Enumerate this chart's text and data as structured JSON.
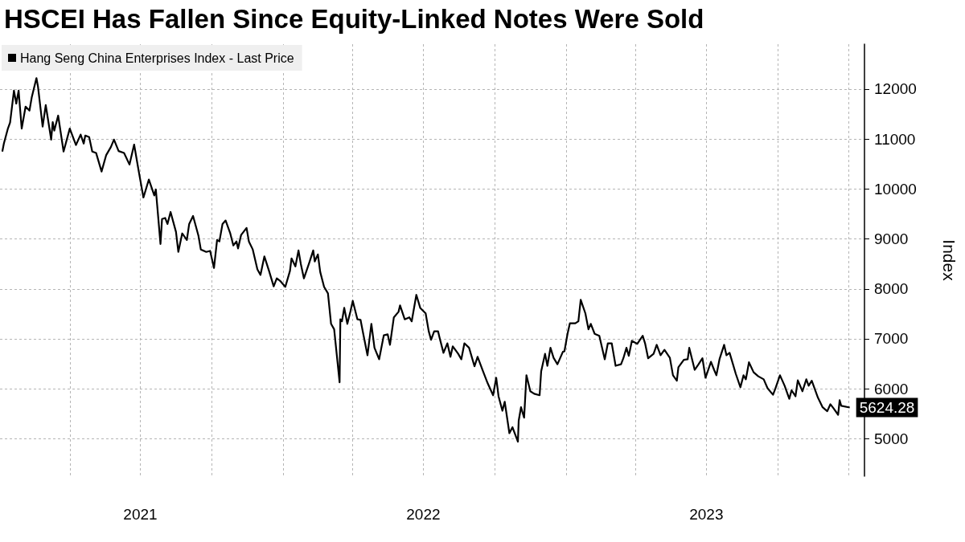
{
  "chart_data": {
    "type": "line",
    "title": "HSCEI Has Fallen Since Equity-Linked Notes Were Sold",
    "ylabel": "Index",
    "x": [
      "2021-01-04",
      "2021-01-06",
      "2021-01-11",
      "2021-01-14",
      "2021-01-19",
      "2021-01-22",
      "2021-01-25",
      "2021-01-29",
      "2021-02-03",
      "2021-02-08",
      "2021-02-11",
      "2021-02-17",
      "2021-02-19",
      "2021-02-23",
      "2021-02-25",
      "2021-03-01",
      "2021-03-08",
      "2021-03-10",
      "2021-03-12",
      "2021-03-17",
      "2021-03-24",
      "2021-04-01",
      "2021-04-09",
      "2021-04-15",
      "2021-04-19",
      "2021-04-21",
      "2021-04-26",
      "2021-04-30",
      "2021-05-05",
      "2021-05-12",
      "2021-05-18",
      "2021-05-24",
      "2021-05-28",
      "2021-06-03",
      "2021-06-10",
      "2021-06-17",
      "2021-06-23",
      "2021-06-29",
      "2021-07-05",
      "2021-07-12",
      "2021-07-19",
      "2021-07-21",
      "2021-07-27",
      "2021-07-29",
      "2021-08-02",
      "2021-08-05",
      "2021-08-09",
      "2021-08-16",
      "2021-08-19",
      "2021-08-24",
      "2021-08-30",
      "2021-09-02",
      "2021-09-07",
      "2021-09-14",
      "2021-09-17",
      "2021-09-24",
      "2021-09-29",
      "2021-10-04",
      "2021-10-08",
      "2021-10-11",
      "2021-10-15",
      "2021-10-19",
      "2021-10-25",
      "2021-10-29",
      "2021-11-02",
      "2021-11-04",
      "2021-11-08",
      "2021-11-15",
      "2021-11-18",
      "2021-11-23",
      "2021-11-29",
      "2021-12-03",
      "2021-12-08",
      "2021-12-14",
      "2021-12-20",
      "2021-12-24",
      "2021-12-29",
      "2022-01-04",
      "2022-01-10",
      "2022-01-12",
      "2022-01-17",
      "2022-01-21",
      "2022-01-24",
      "2022-01-28",
      "2022-02-04",
      "2022-02-09",
      "2022-02-11",
      "2022-02-15",
      "2022-02-18",
      "2022-02-23",
      "2022-02-28",
      "2022-03-04",
      "2022-03-08",
      "2022-03-15",
      "2022-03-16",
      "2022-03-18",
      "2022-03-21",
      "2022-03-25",
      "2022-03-29",
      "2022-04-01",
      "2022-04-07",
      "2022-04-11",
      "2022-04-14",
      "2022-04-20",
      "2022-04-25",
      "2022-04-29",
      "2022-05-05",
      "2022-05-11",
      "2022-05-16",
      "2022-05-19",
      "2022-05-24",
      "2022-05-30",
      "2022-06-01",
      "2022-06-07",
      "2022-06-13",
      "2022-06-16",
      "2022-06-22",
      "2022-06-27",
      "2022-07-04",
      "2022-07-08",
      "2022-07-11",
      "2022-07-15",
      "2022-07-20",
      "2022-07-22",
      "2022-07-27",
      "2022-08-01",
      "2022-08-05",
      "2022-08-08",
      "2022-08-15",
      "2022-08-19",
      "2022-08-23",
      "2022-08-29",
      "2022-09-05",
      "2022-09-09",
      "2022-09-16",
      "2022-09-22",
      "2022-09-29",
      "2022-10-03",
      "2022-10-06",
      "2022-10-11",
      "2022-10-14",
      "2022-10-20",
      "2022-10-24",
      "2022-10-31",
      "2022-11-01",
      "2022-11-04",
      "2022-11-08",
      "2022-11-11",
      "2022-11-16",
      "2022-11-21",
      "2022-11-28",
      "2022-11-30",
      "2022-12-05",
      "2022-12-08",
      "2022-12-12",
      "2022-12-16",
      "2022-12-21",
      "2022-12-28",
      "2022-12-30",
      "2023-01-03",
      "2023-01-06",
      "2023-01-13",
      "2023-01-17",
      "2023-01-20",
      "2023-01-26",
      "2023-01-30",
      "2023-02-02",
      "2023-02-07",
      "2023-02-13",
      "2023-02-20",
      "2023-02-24",
      "2023-03-01",
      "2023-03-06",
      "2023-03-13",
      "2023-03-16",
      "2023-03-20",
      "2023-03-23",
      "2023-03-27",
      "2023-04-03",
      "2023-04-10",
      "2023-04-13",
      "2023-04-17",
      "2023-04-24",
      "2023-04-28",
      "2023-05-03",
      "2023-05-08",
      "2023-05-15",
      "2023-05-19",
      "2023-05-24",
      "2023-05-26",
      "2023-06-02",
      "2023-06-07",
      "2023-06-09",
      "2023-06-16",
      "2023-06-21",
      "2023-06-26",
      "2023-06-30",
      "2023-07-07",
      "2023-07-11",
      "2023-07-14",
      "2023-07-18",
      "2023-07-24",
      "2023-07-27",
      "2023-07-31",
      "2023-08-04",
      "2023-08-08",
      "2023-08-14",
      "2023-08-18",
      "2023-08-21",
      "2023-08-25",
      "2023-08-31",
      "2023-09-06",
      "2023-09-13",
      "2023-09-18",
      "2023-09-25",
      "2023-09-28",
      "2023-10-04",
      "2023-10-10",
      "2023-10-16",
      "2023-10-19",
      "2023-10-24",
      "2023-10-27",
      "2023-11-02",
      "2023-11-07",
      "2023-11-10",
      "2023-11-14",
      "2023-11-22",
      "2023-11-28",
      "2023-12-04",
      "2023-12-08",
      "2023-12-12",
      "2023-12-18",
      "2023-12-20",
      "2023-12-22",
      "2024-01-02"
    ],
    "series": [
      {
        "name": "Hang Seng China Enterprises Index - Last Price",
        "color": "#000000",
        "values": [
          10750,
          10910,
          11200,
          11330,
          11970,
          11710,
          11970,
          11210,
          11650,
          11570,
          11840,
          12220,
          12050,
          11520,
          11250,
          11680,
          10990,
          11340,
          11170,
          11470,
          10750,
          11210,
          10880,
          11090,
          10910,
          11070,
          11040,
          10750,
          10720,
          10350,
          10680,
          10840,
          10990,
          10760,
          10720,
          10490,
          10890,
          10350,
          9830,
          10190,
          9870,
          9990,
          8900,
          9400,
          9420,
          9300,
          9540,
          9140,
          8740,
          9110,
          8980,
          9300,
          9460,
          9060,
          8790,
          8740,
          8760,
          8420,
          8980,
          8950,
          9300,
          9370,
          9110,
          8870,
          8950,
          8810,
          9080,
          9220,
          8950,
          8790,
          8390,
          8280,
          8650,
          8360,
          8050,
          8210,
          8150,
          8040,
          8360,
          8610,
          8450,
          8770,
          8500,
          8210,
          8530,
          8770,
          8550,
          8690,
          8340,
          8040,
          7910,
          7300,
          7190,
          6130,
          7390,
          7350,
          7620,
          7300,
          7550,
          7760,
          7390,
          7380,
          7140,
          6670,
          7300,
          6820,
          6590,
          7070,
          7090,
          6880,
          7430,
          7540,
          7670,
          7390,
          7430,
          7350,
          7880,
          7620,
          7510,
          7150,
          6980,
          7150,
          7150,
          7020,
          6720,
          6910,
          6640,
          6850,
          6700,
          6590,
          6910,
          6820,
          6450,
          6640,
          6350,
          6110,
          5870,
          6220,
          5850,
          5560,
          5740,
          5110,
          5230,
          4940,
          5360,
          5630,
          5420,
          6270,
          5950,
          5900,
          5870,
          6350,
          6700,
          6460,
          6820,
          6620,
          6490,
          6740,
          6750,
          7100,
          7310,
          7310,
          7350,
          7780,
          7510,
          7190,
          7300,
          7100,
          7060,
          6590,
          6910,
          6910,
          6460,
          6490,
          6610,
          6820,
          6660,
          6960,
          6900,
          7060,
          6910,
          6610,
          6700,
          6880,
          6670,
          6780,
          6620,
          6270,
          6160,
          6430,
          6580,
          6590,
          6820,
          6380,
          6490,
          6610,
          6220,
          6540,
          6380,
          6270,
          6590,
          6880,
          6670,
          6720,
          6510,
          6300,
          6030,
          6270,
          6190,
          6530,
          6330,
          6250,
          6190,
          6010,
          5880,
          6000,
          6270,
          6060,
          5800,
          5970,
          5850,
          6170,
          5950,
          6190,
          6060,
          6160,
          5820,
          5630,
          5550,
          5690,
          5610,
          5480,
          5770,
          5660,
          5624.28
        ]
      }
    ],
    "xlim": [
      "2021-01-01",
      "2024-01-21"
    ],
    "xticks": [
      {
        "value": "2021-04-01",
        "label": null
      },
      {
        "value": "2021-07-01",
        "label": "2021"
      },
      {
        "value": "2021-10-01",
        "label": null
      },
      {
        "value": "2022-01-01",
        "label": null
      },
      {
        "value": "2022-04-01",
        "label": null
      },
      {
        "value": "2022-07-01",
        "label": "2022"
      },
      {
        "value": "2022-10-01",
        "label": null
      },
      {
        "value": "2023-01-01",
        "label": null
      },
      {
        "value": "2023-04-01",
        "label": null
      },
      {
        "value": "2023-07-01",
        "label": "2023"
      },
      {
        "value": "2023-10-01",
        "label": null
      },
      {
        "value": "2024-01-01",
        "label": null
      }
    ],
    "ylim": [
      4250,
      12900
    ],
    "yticks": [
      5000,
      6000,
      7000,
      8000,
      9000,
      10000,
      11000,
      12000
    ],
    "grid": true,
    "legend": "top left",
    "marker": "none",
    "line_style": "solid",
    "annotations": [
      {
        "text": "5624.28",
        "x": "2024-01-02",
        "y": 5624.28
      }
    ]
  }
}
